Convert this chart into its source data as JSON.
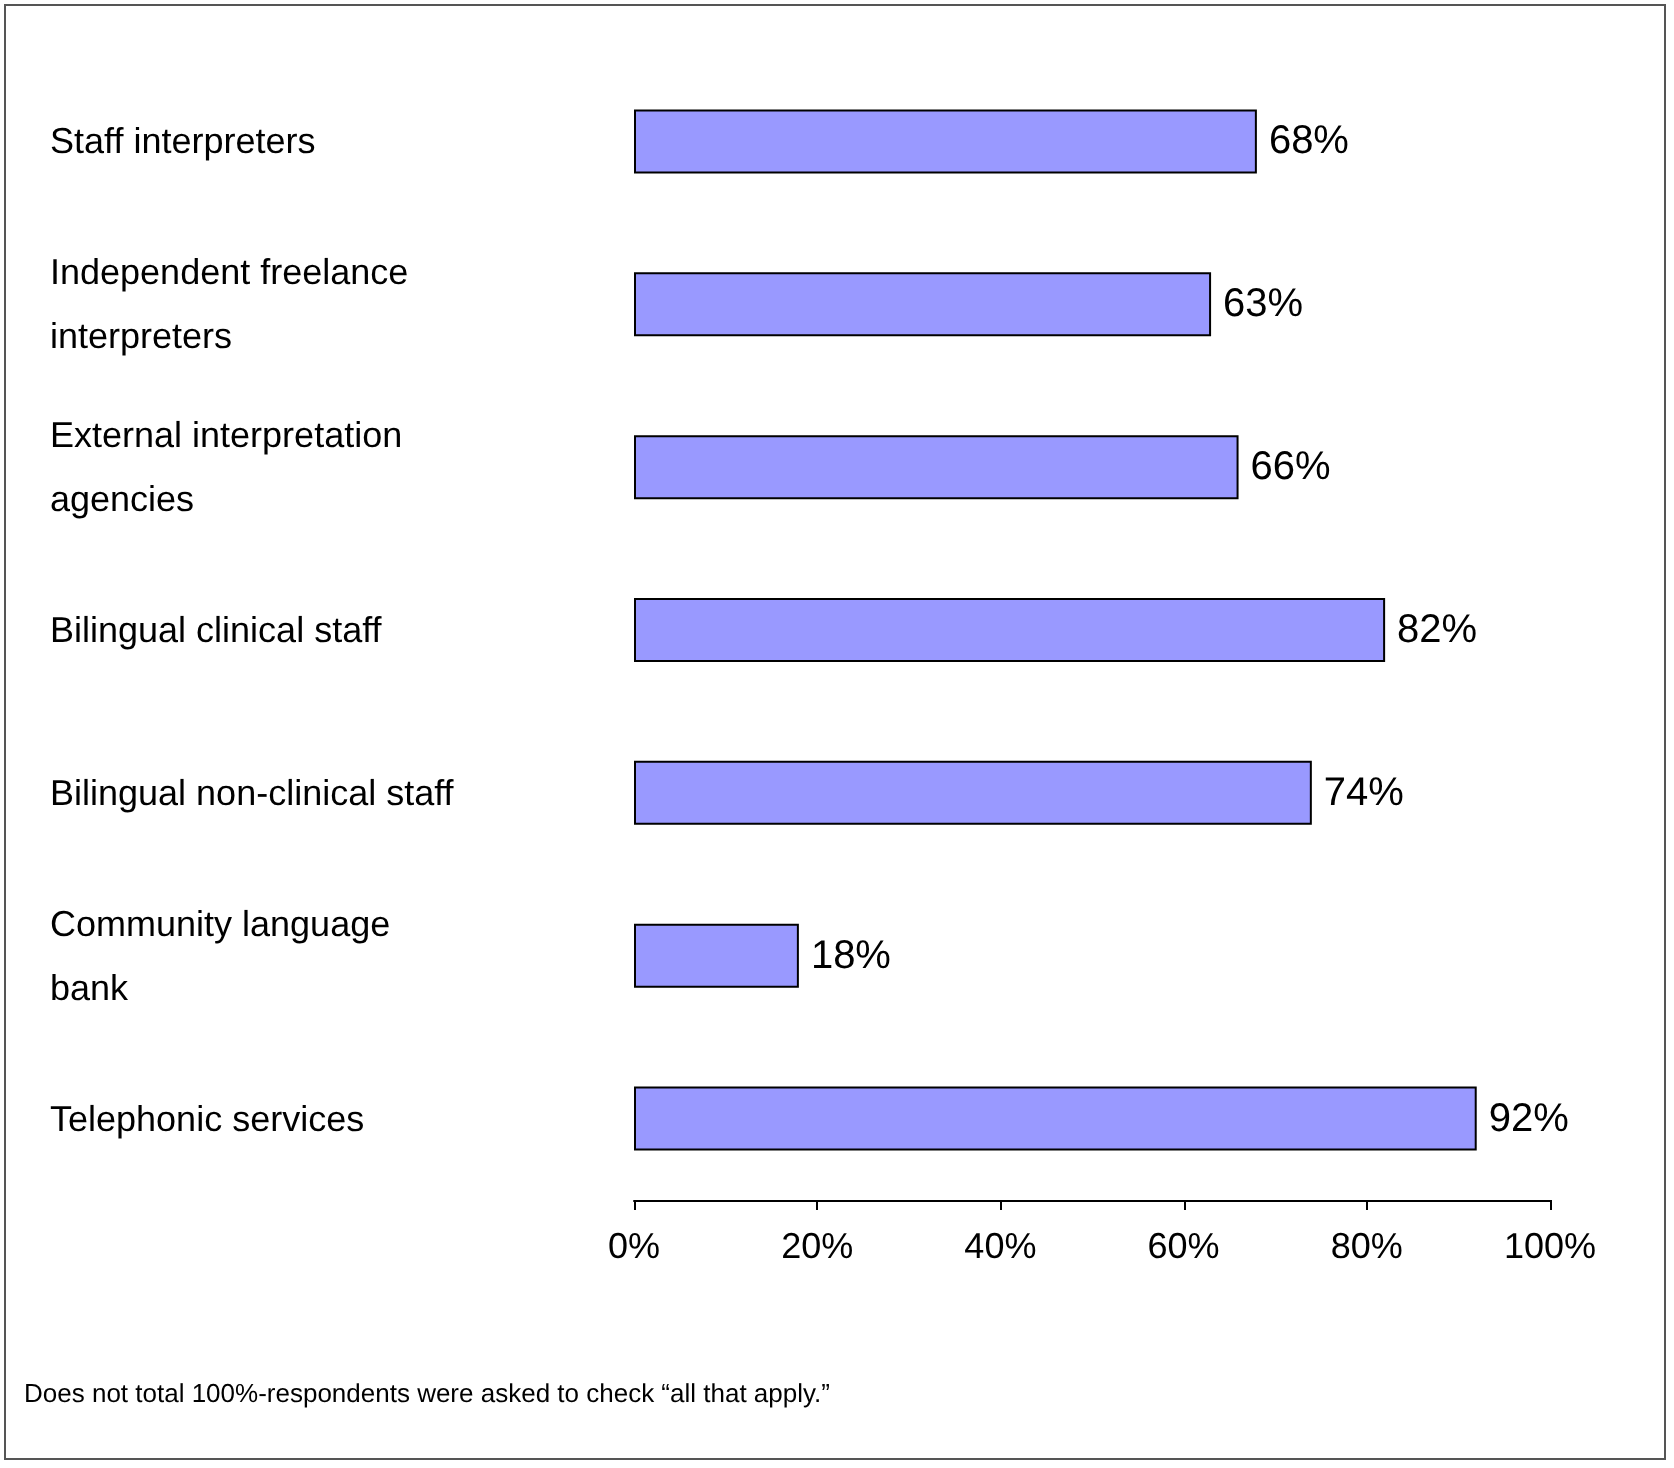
{
  "chart_data": {
    "type": "bar",
    "orientation": "horizontal",
    "categories": [
      "Staff interpreters",
      "Independent freelance interpreters",
      "External interpretation agencies",
      "Bilingual clinical staff",
      "Bilingual non-clinical staff",
      "Community language bank",
      "Telephonic services"
    ],
    "values": [
      68,
      63,
      66,
      82,
      74,
      18,
      92
    ],
    "value_labels": [
      "68%",
      "63%",
      "66%",
      "82%",
      "74%",
      "18%",
      "92%"
    ],
    "color": "#9999ff",
    "xlim": [
      0,
      100
    ],
    "xticks": [
      {
        "value": 0,
        "label": "0%"
      },
      {
        "value": 20,
        "label": "20%"
      },
      {
        "value": 40,
        "label": "40%"
      },
      {
        "value": 60,
        "label": "60%"
      },
      {
        "value": 80,
        "label": "80%"
      },
      {
        "value": 100,
        "label": "100%"
      }
    ],
    "grid": false,
    "annotations": [
      "Does not total 100%-respondents were asked to check “all that apply.”"
    ]
  }
}
